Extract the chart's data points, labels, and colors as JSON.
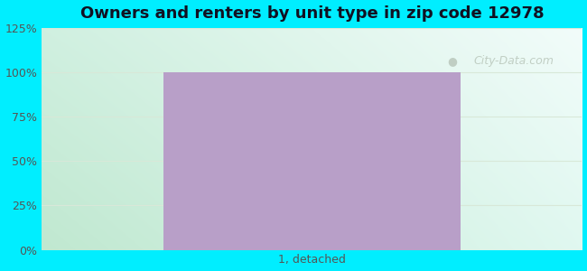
{
  "title": "Owners and renters by unit type in zip code 12978",
  "categories": [
    "1, detached"
  ],
  "values": [
    100
  ],
  "bar_color": "#b89fc8",
  "bar_width": 0.55,
  "ylim": [
    0,
    125
  ],
  "yticks": [
    0,
    25,
    50,
    75,
    100,
    125
  ],
  "ytick_labels": [
    "0%",
    "25%",
    "50%",
    "75%",
    "100%",
    "125%"
  ],
  "title_fontsize": 13,
  "tick_fontsize": 9,
  "bg_outer_color": "#00eeff",
  "bg_topleft_color": "#d0f0e0",
  "bg_topright_color": "#f0faf8",
  "bg_bottomleft_color": "#c8ecd4",
  "bg_bottomright_color": "#e0f5ec",
  "grid_color": "#d8e8d8",
  "watermark_text": "City-Data.com",
  "watermark_color": "#b0bdb0",
  "watermark_alpha": 0.7
}
